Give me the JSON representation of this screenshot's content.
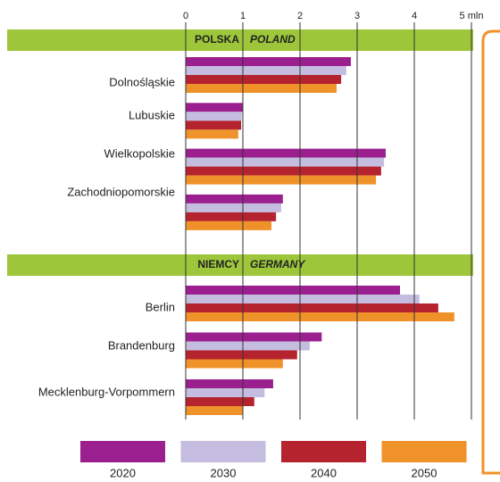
{
  "axis": {
    "xlim": [
      0,
      5
    ],
    "xticks": [
      0,
      1,
      2,
      3,
      4,
      {
        "value": 5,
        "label": "5 mln"
      }
    ]
  },
  "legend": {
    "items": [
      {
        "name": "2020",
        "color": "#9b1f8e"
      },
      {
        "name": "2030",
        "color": "#c4bde0"
      },
      {
        "name": "2040",
        "color": "#b5232f"
      },
      {
        "name": "2050",
        "color": "#f0922a"
      }
    ]
  },
  "chart_data": [
    {
      "type": "bar",
      "orientation": "horizontal",
      "title": "POLSKA",
      "subtitle": "POLAND",
      "categories": [
        "Dolnośląskie",
        "Lubuskie",
        "Wielkopolskie",
        "Zachodniopomorskie"
      ],
      "series": [
        {
          "values": [
            2.89,
            1.0,
            3.5,
            1.7
          ]
        },
        {
          "values": [
            2.81,
            0.98,
            3.47,
            1.67
          ]
        },
        {
          "values": [
            2.72,
            0.97,
            3.42,
            1.58
          ]
        },
        {
          "values": [
            2.64,
            0.92,
            3.33,
            1.5
          ]
        }
      ]
    },
    {
      "type": "bar",
      "orientation": "horizontal",
      "title": "NIEMCY",
      "subtitle": "GERMANY",
      "categories": [
        "Berlin",
        "Brandenburg",
        "Mecklenburg-Vorpommern"
      ],
      "series": [
        {
          "values": [
            3.75,
            2.38,
            1.53
          ]
        },
        {
          "values": [
            4.09,
            2.17,
            1.38
          ]
        },
        {
          "values": [
            4.42,
            1.95,
            1.2
          ]
        },
        {
          "values": [
            4.7,
            1.7,
            1.0
          ]
        }
      ]
    }
  ]
}
